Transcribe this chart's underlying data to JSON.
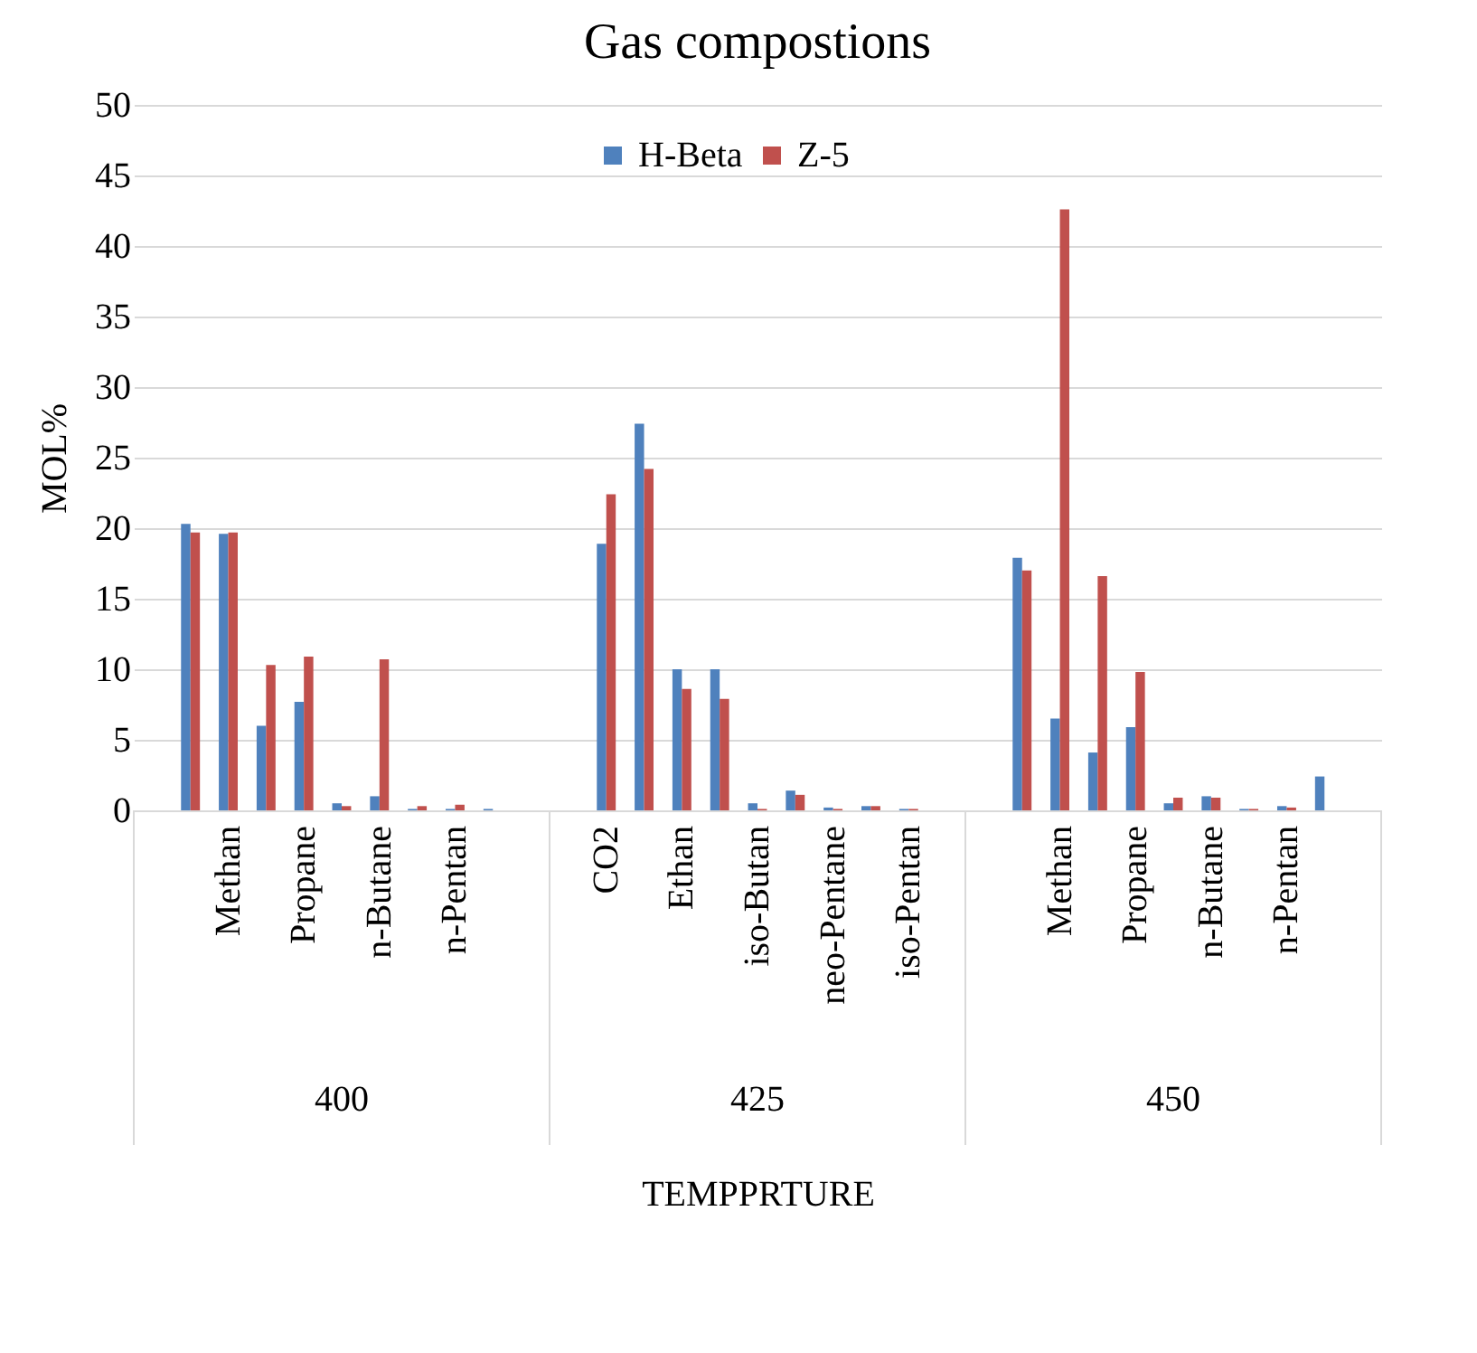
{
  "chart_data": {
    "type": "bar",
    "title": "Gas compostions",
    "xlabel": "TEMPPRTURE",
    "ylabel": "MOL%",
    "categories": [
      null,
      null,
      "Methan",
      null,
      "Propane",
      null,
      "n-Butane",
      null,
      "n-Pentan",
      null,
      null,
      null,
      "CO2",
      null,
      "Ethan",
      null,
      "iso-Butan",
      null,
      "neo-Pentane",
      null,
      "iso-Pentan",
      null,
      null,
      null,
      "Methan",
      null,
      "Propane",
      null,
      "n-Butane",
      null,
      "n-Pentan",
      null,
      null
    ],
    "series": [
      {
        "name": "H-Beta",
        "color": "#4f81bd",
        "values": [
          null,
          20.3,
          19.6,
          6.0,
          7.7,
          0.5,
          1.0,
          0.1,
          0.1,
          0.1,
          null,
          null,
          18.9,
          27.4,
          10.0,
          10.0,
          0.5,
          1.4,
          0.2,
          0.3,
          0.1,
          null,
          null,
          17.9,
          6.5,
          4.1,
          5.9,
          0.5,
          1.0,
          0.1,
          0.3,
          2.4,
          null
        ]
      },
      {
        "name": "Z-5",
        "color": "#c0504d",
        "values": [
          null,
          19.7,
          19.7,
          10.3,
          10.9,
          0.3,
          10.7,
          0.3,
          0.4,
          null,
          null,
          null,
          22.4,
          24.2,
          8.6,
          7.9,
          0.1,
          1.1,
          0.1,
          0.3,
          0.1,
          null,
          null,
          17.0,
          42.6,
          16.6,
          9.8,
          0.9,
          0.9,
          0.1,
          0.2,
          null,
          null
        ]
      }
    ],
    "annotations": [
      "400",
      "425",
      "450"
    ],
    "ylim": [
      0,
      50
    ],
    "yticks": [
      0,
      5,
      10,
      15,
      20,
      25,
      30,
      35,
      40,
      45,
      50
    ],
    "grid": "y",
    "legend": "top"
  }
}
